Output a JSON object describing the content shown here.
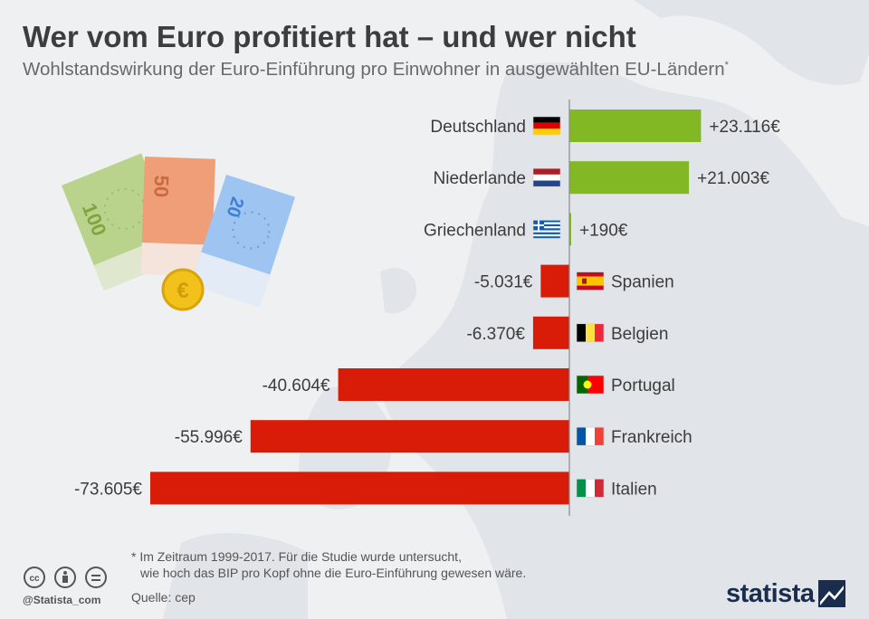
{
  "header": {
    "title": "Wer vom Euro profitiert hat – und wer nicht",
    "subtitle": "Wohlstandswirkung der Euro-Einführung pro Einwohner in ausgewählten EU-Ländern",
    "subtitle_mark": "*"
  },
  "chart_data": {
    "type": "bar",
    "orientation": "horizontal",
    "categories": [
      "Deutschland",
      "Niederlande",
      "Griechenland",
      "Spanien",
      "Belgien",
      "Portugal",
      "Frankreich",
      "Italien"
    ],
    "values": [
      23116,
      21003,
      190,
      -5031,
      -6370,
      -40604,
      -55996,
      -73605
    ],
    "value_labels": [
      "+23.116€",
      "+21.003€",
      "+190€",
      "-5.031€",
      "-6.370€",
      "-40.604€",
      "-55.996€",
      "-73.605€"
    ],
    "flags": [
      "flag-de-icon",
      "flag-nl-icon",
      "flag-gr-icon",
      "flag-es-icon",
      "flag-be-icon",
      "flag-pt-icon",
      "flag-fr-icon",
      "flag-it-icon"
    ],
    "colors": {
      "positive": "#82b823",
      "negative": "#d91c07",
      "axis": "#8a8a8a"
    }
  },
  "illustration": {
    "banknotes": [
      "100",
      "50",
      "20"
    ],
    "coin": "€"
  },
  "footer": {
    "footnote_line1": "* Im Zeitraum 1999-2017. Für die Studie wurde untersucht,",
    "footnote_line2": "wie hoch das BIP pro Kopf ohne die Euro-Einführung gewesen wäre.",
    "source": "Quelle: cep",
    "handle": "@Statista_com",
    "brand": "statista"
  }
}
